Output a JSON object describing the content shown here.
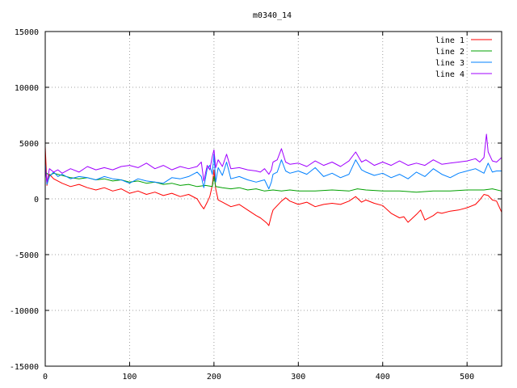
{
  "chart_data": {
    "type": "line",
    "title": "m0340_14",
    "xlabel": "",
    "ylabel": "",
    "xlim": [
      0,
      541
    ],
    "ylim": [
      -15000,
      15000
    ],
    "x_ticks": [
      0,
      100,
      200,
      300,
      400,
      500
    ],
    "y_ticks": [
      -15000,
      -10000,
      -5000,
      0,
      5000,
      10000,
      15000
    ],
    "grid": true,
    "legend_position": "top-right",
    "series": [
      {
        "name": "line 1",
        "color": "#ff0000",
        "x": [
          0,
          2,
          5,
          10,
          20,
          30,
          40,
          50,
          60,
          70,
          80,
          90,
          100,
          110,
          120,
          130,
          140,
          150,
          160,
          170,
          180,
          185,
          188,
          192,
          195,
          198,
          200,
          202,
          205,
          210,
          220,
          230,
          240,
          250,
          255,
          260,
          263,
          265,
          268,
          270,
          275,
          280,
          285,
          290,
          300,
          310,
          320,
          330,
          340,
          350,
          360,
          368,
          375,
          380,
          390,
          400,
          410,
          420,
          425,
          430,
          440,
          445,
          450,
          460,
          465,
          470,
          480,
          490,
          500,
          510,
          515,
          520,
          525,
          530,
          535,
          541
        ],
        "y": [
          4700,
          1200,
          2200,
          1800,
          1400,
          1100,
          1300,
          1000,
          800,
          1000,
          700,
          900,
          500,
          700,
          400,
          600,
          300,
          500,
          200,
          400,
          0,
          -600,
          -900,
          -300,
          200,
          1200,
          2600,
          900,
          -100,
          -300,
          -700,
          -500,
          -1000,
          -1500,
          -1700,
          -2000,
          -2200,
          -2400,
          -1500,
          -1000,
          -600,
          -200,
          100,
          -200,
          -500,
          -300,
          -700,
          -500,
          -400,
          -500,
          -200,
          200,
          -300,
          -100,
          -400,
          -600,
          -1300,
          -1700,
          -1600,
          -2100,
          -1400,
          -1000,
          -1900,
          -1500,
          -1200,
          -1300,
          -1100,
          -1000,
          -800,
          -500,
          -100,
          400,
          300,
          -100,
          -200,
          -1200
        ]
      },
      {
        "name": "line 2",
        "color": "#00a000",
        "x": [
          0,
          5,
          10,
          20,
          30,
          40,
          50,
          60,
          70,
          80,
          90,
          100,
          110,
          120,
          130,
          140,
          150,
          160,
          170,
          180,
          190,
          198,
          200,
          202,
          210,
          220,
          230,
          240,
          250,
          260,
          270,
          280,
          290,
          300,
          320,
          340,
          360,
          370,
          380,
          400,
          420,
          440,
          460,
          480,
          500,
          520,
          530,
          541
        ],
        "y": [
          2400,
          2100,
          2300,
          2100,
          1900,
          1800,
          1900,
          1700,
          1800,
          1600,
          1700,
          1500,
          1600,
          1400,
          1500,
          1300,
          1400,
          1200,
          1300,
          1100,
          1200,
          1100,
          2000,
          1100,
          1000,
          900,
          1000,
          800,
          900,
          700,
          800,
          700,
          800,
          700,
          700,
          800,
          700,
          900,
          800,
          700,
          700,
          600,
          700,
          700,
          800,
          800,
          900,
          700
        ]
      },
      {
        "name": "line 3",
        "color": "#0080ff",
        "x": [
          0,
          2,
          5,
          10,
          15,
          20,
          30,
          40,
          50,
          60,
          70,
          80,
          90,
          100,
          110,
          120,
          130,
          140,
          150,
          160,
          170,
          180,
          185,
          188,
          192,
          195,
          198,
          200,
          202,
          205,
          210,
          215,
          220,
          230,
          240,
          250,
          255,
          260,
          265,
          268,
          270,
          275,
          280,
          285,
          290,
          300,
          310,
          320,
          330,
          340,
          350,
          360,
          368,
          375,
          380,
          390,
          400,
          410,
          420,
          430,
          440,
          450,
          460,
          470,
          480,
          490,
          500,
          510,
          520,
          525,
          530,
          535,
          541
        ],
        "y": [
          3200,
          1300,
          2000,
          2400,
          2000,
          2200,
          1800,
          2000,
          1900,
          1700,
          2000,
          1800,
          1700,
          1400,
          1800,
          1600,
          1500,
          1400,
          1900,
          1800,
          2000,
          2400,
          2000,
          1000,
          2700,
          3000,
          2200,
          4000,
          1500,
          2800,
          2100,
          3300,
          1800,
          2000,
          1700,
          1500,
          1600,
          1700,
          900,
          1500,
          2200,
          2400,
          3500,
          2500,
          2300,
          2500,
          2200,
          2800,
          2000,
          2300,
          1900,
          2200,
          3500,
          2600,
          2400,
          2100,
          2300,
          1900,
          2200,
          1800,
          2400,
          2000,
          2700,
          2200,
          1900,
          2300,
          2500,
          2700,
          2300,
          3200,
          2400,
          2500,
          2500
        ]
      },
      {
        "name": "line 4",
        "color": "#a000ff",
        "x": [
          0,
          2,
          5,
          10,
          15,
          20,
          30,
          40,
          50,
          60,
          70,
          80,
          90,
          100,
          110,
          120,
          130,
          140,
          150,
          160,
          170,
          180,
          185,
          188,
          192,
          195,
          198,
          200,
          202,
          205,
          210,
          215,
          220,
          230,
          240,
          250,
          255,
          260,
          265,
          268,
          270,
          275,
          280,
          285,
          290,
          300,
          310,
          320,
          330,
          340,
          350,
          360,
          368,
          375,
          380,
          390,
          400,
          410,
          420,
          430,
          440,
          450,
          460,
          470,
          480,
          490,
          500,
          510,
          515,
          520,
          523,
          525,
          530,
          535,
          541
        ],
        "y": [
          2800,
          1500,
          2700,
          2400,
          2600,
          2300,
          2700,
          2400,
          2900,
          2600,
          2800,
          2600,
          2900,
          3000,
          2800,
          3200,
          2700,
          3000,
          2600,
          2900,
          2700,
          2900,
          3300,
          1600,
          3000,
          2600,
          3800,
          4400,
          2800,
          3500,
          2900,
          4000,
          2700,
          2800,
          2600,
          2500,
          2400,
          2700,
          2200,
          2600,
          3300,
          3500,
          4500,
          3300,
          3100,
          3200,
          2900,
          3400,
          3000,
          3300,
          2900,
          3400,
          4200,
          3300,
          3500,
          3000,
          3300,
          3000,
          3400,
          3000,
          3200,
          3000,
          3500,
          3100,
          3200,
          3300,
          3400,
          3600,
          3300,
          3700,
          5800,
          4200,
          3400,
          3300,
          3700
        ]
      }
    ]
  }
}
